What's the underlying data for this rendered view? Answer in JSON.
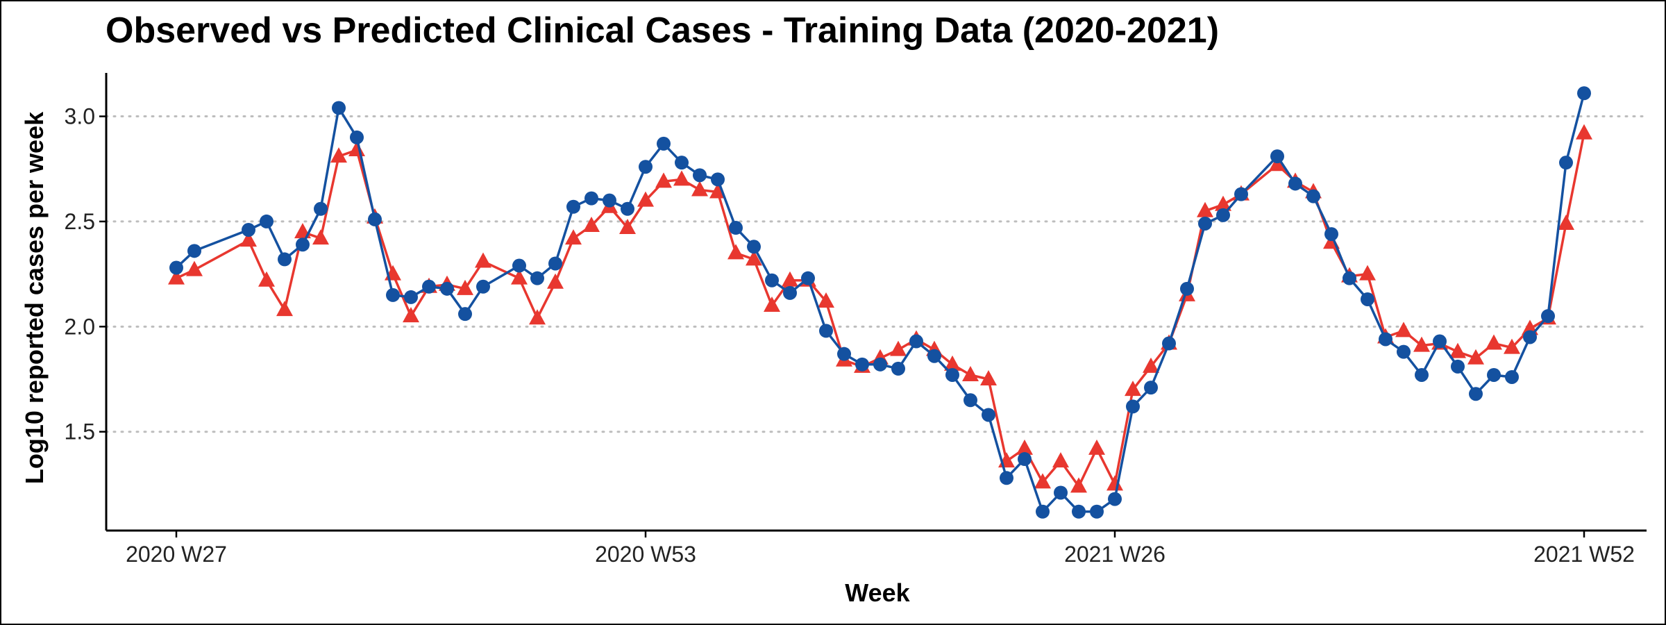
{
  "chart_data": {
    "type": "line",
    "title": "Observed vs Predicted Clinical Cases - Training Data (2020-2021)",
    "xlabel": "Week",
    "ylabel": "Log10 reported cases per week",
    "ylim": [
      1.03,
      3.2
    ],
    "y_ticks": [
      "1.5",
      "2.0",
      "2.5",
      "3.0"
    ],
    "x_tick_labels": [
      "2020 W27",
      "2020 W53",
      "2021 W26",
      "2021 W52"
    ],
    "grid": "horizontal dotted",
    "legend": "none",
    "series": [
      {
        "marker": "circle",
        "color": "#1451a0",
        "points": [
          [
            0,
            2.28
          ],
          [
            1,
            2.36
          ],
          [
            4,
            2.46
          ],
          [
            5,
            2.5
          ],
          [
            6,
            2.32
          ],
          [
            7,
            2.39
          ],
          [
            8,
            2.56
          ],
          [
            9,
            3.04
          ],
          [
            10,
            2.9
          ],
          [
            11,
            2.51
          ],
          [
            12,
            2.15
          ],
          [
            13,
            2.14
          ],
          [
            14,
            2.19
          ],
          [
            15,
            2.18
          ],
          [
            16,
            2.06
          ],
          [
            17,
            2.19
          ],
          [
            19,
            2.29
          ],
          [
            20,
            2.23
          ],
          [
            21,
            2.3
          ],
          [
            22,
            2.57
          ],
          [
            23,
            2.61
          ],
          [
            24,
            2.6
          ],
          [
            25,
            2.56
          ],
          [
            26,
            2.76
          ],
          [
            27,
            2.87
          ],
          [
            28,
            2.78
          ],
          [
            29,
            2.72
          ],
          [
            30,
            2.7
          ],
          [
            31,
            2.47
          ],
          [
            32,
            2.38
          ],
          [
            33,
            2.22
          ],
          [
            34,
            2.16
          ],
          [
            35,
            2.23
          ],
          [
            36,
            1.98
          ],
          [
            37,
            1.87
          ],
          [
            38,
            1.82
          ],
          [
            39,
            1.82
          ],
          [
            40,
            1.8
          ],
          [
            41,
            1.93
          ],
          [
            42,
            1.86
          ],
          [
            43,
            1.77
          ],
          [
            44,
            1.65
          ],
          [
            45,
            1.58
          ],
          [
            46,
            1.28
          ],
          [
            47,
            1.37
          ],
          [
            48,
            1.12
          ],
          [
            49,
            1.21
          ],
          [
            50,
            1.12
          ],
          [
            51,
            1.12
          ],
          [
            52,
            1.18
          ],
          [
            53,
            1.62
          ],
          [
            54,
            1.71
          ],
          [
            55,
            1.92
          ],
          [
            56,
            2.18
          ],
          [
            57,
            2.49
          ],
          [
            58,
            2.53
          ],
          [
            59,
            2.63
          ],
          [
            61,
            2.81
          ],
          [
            62,
            2.68
          ],
          [
            63,
            2.62
          ],
          [
            64,
            2.44
          ],
          [
            65,
            2.23
          ],
          [
            66,
            2.13
          ],
          [
            67,
            1.94
          ],
          [
            68,
            1.88
          ],
          [
            69,
            1.77
          ],
          [
            70,
            1.93
          ],
          [
            71,
            1.81
          ],
          [
            72,
            1.68
          ],
          [
            73,
            1.77
          ],
          [
            74,
            1.76
          ],
          [
            75,
            1.95
          ],
          [
            76,
            2.05
          ],
          [
            77,
            2.78
          ],
          [
            78,
            3.11
          ]
        ]
      },
      {
        "marker": "triangle",
        "color": "#e8372f",
        "points": [
          [
            0,
            2.23
          ],
          [
            1,
            2.27
          ],
          [
            4,
            2.41
          ],
          [
            5,
            2.22
          ],
          [
            6,
            2.08
          ],
          [
            7,
            2.45
          ],
          [
            8,
            2.42
          ],
          [
            9,
            2.81
          ],
          [
            10,
            2.84
          ],
          [
            11,
            2.52
          ],
          [
            12,
            2.25
          ],
          [
            13,
            2.05
          ],
          [
            14,
            2.19
          ],
          [
            15,
            2.2
          ],
          [
            16,
            2.18
          ],
          [
            17,
            2.31
          ],
          [
            19,
            2.23
          ],
          [
            20,
            2.04
          ],
          [
            21,
            2.21
          ],
          [
            22,
            2.42
          ],
          [
            23,
            2.48
          ],
          [
            24,
            2.57
          ],
          [
            25,
            2.47
          ],
          [
            26,
            2.6
          ],
          [
            27,
            2.69
          ],
          [
            28,
            2.7
          ],
          [
            29,
            2.65
          ],
          [
            30,
            2.64
          ],
          [
            31,
            2.35
          ],
          [
            32,
            2.32
          ],
          [
            33,
            2.1
          ],
          [
            34,
            2.22
          ],
          [
            35,
            2.22
          ],
          [
            36,
            2.12
          ],
          [
            37,
            1.84
          ],
          [
            38,
            1.81
          ],
          [
            39,
            1.85
          ],
          [
            40,
            1.89
          ],
          [
            41,
            1.94
          ],
          [
            42,
            1.89
          ],
          [
            43,
            1.82
          ],
          [
            44,
            1.77
          ],
          [
            45,
            1.75
          ],
          [
            46,
            1.36
          ],
          [
            47,
            1.42
          ],
          [
            48,
            1.26
          ],
          [
            49,
            1.36
          ],
          [
            50,
            1.24
          ],
          [
            51,
            1.42
          ],
          [
            52,
            1.25
          ],
          [
            53,
            1.7
          ],
          [
            54,
            1.81
          ],
          [
            55,
            1.92
          ],
          [
            56,
            2.15
          ],
          [
            57,
            2.55
          ],
          [
            58,
            2.58
          ],
          [
            59,
            2.63
          ],
          [
            61,
            2.77
          ],
          [
            62,
            2.69
          ],
          [
            63,
            2.64
          ],
          [
            64,
            2.4
          ],
          [
            65,
            2.24
          ],
          [
            66,
            2.25
          ],
          [
            67,
            1.95
          ],
          [
            68,
            1.98
          ],
          [
            69,
            1.91
          ],
          [
            70,
            1.92
          ],
          [
            71,
            1.88
          ],
          [
            72,
            1.85
          ],
          [
            73,
            1.92
          ],
          [
            74,
            1.9
          ],
          [
            75,
            1.99
          ],
          [
            76,
            2.04
          ],
          [
            77,
            2.49
          ],
          [
            78,
            2.92
          ]
        ]
      }
    ]
  }
}
